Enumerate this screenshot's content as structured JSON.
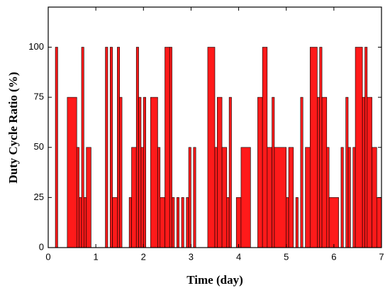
{
  "chart_data": {
    "type": "histogram",
    "xlabel": "Time (day)",
    "ylabel": "Duty Cycle Ratio (%)",
    "color": "#ff1a1a",
    "edgecolor": "#000000",
    "bins": [
      0,
      0.15,
      0.2,
      0.4,
      0.6,
      0.65,
      0.7,
      0.75,
      0.8,
      0.9,
      1.2,
      1.25,
      1.3,
      1.35,
      1.45,
      1.5,
      1.55,
      1.7,
      1.75,
      1.85,
      1.9,
      1.95,
      2.0,
      2.05,
      2.15,
      2.3,
      2.35,
      2.45,
      2.55,
      2.6,
      2.65,
      2.7,
      2.75,
      2.8,
      2.85,
      2.9,
      2.95,
      3.0,
      3.05,
      3.1,
      3.35,
      3.5,
      3.55,
      3.65,
      3.75,
      3.8,
      3.85,
      3.95,
      4.05,
      4.25,
      4.4,
      4.5,
      4.6,
      4.7,
      4.75,
      5.0,
      5.05,
      5.15,
      5.2,
      5.25,
      5.3,
      5.35,
      5.4,
      5.5,
      5.65,
      5.7,
      5.75,
      5.85,
      5.9,
      6.1,
      6.15,
      6.2,
      6.25,
      6.3,
      6.35,
      6.4,
      6.45,
      6.6,
      6.65,
      6.7,
      6.8,
      6.9,
      7.0
    ],
    "values": [
      0,
      100,
      0,
      75,
      50,
      25,
      100,
      25,
      50,
      0,
      100,
      0,
      100,
      25,
      100,
      75,
      0,
      25,
      50,
      100,
      75,
      50,
      75,
      0,
      75,
      50,
      25,
      100,
      100,
      25,
      0,
      25,
      0,
      25,
      0,
      25,
      50,
      0,
      50,
      0,
      100,
      50,
      75,
      50,
      25,
      75,
      0,
      25,
      50,
      0,
      75,
      100,
      50,
      75,
      50,
      25,
      50,
      0,
      25,
      0,
      75,
      0,
      50,
      100,
      75,
      100,
      75,
      50,
      25,
      0,
      50,
      0,
      75,
      50,
      0,
      50,
      100,
      75,
      100,
      75,
      50,
      25
    ],
    "xlim": [
      0,
      7
    ],
    "xticks": [
      0,
      1,
      2,
      3,
      4,
      5,
      6,
      7
    ],
    "ylim": [
      0,
      120
    ],
    "yticks": [
      0,
      25,
      50,
      75,
      100
    ]
  }
}
